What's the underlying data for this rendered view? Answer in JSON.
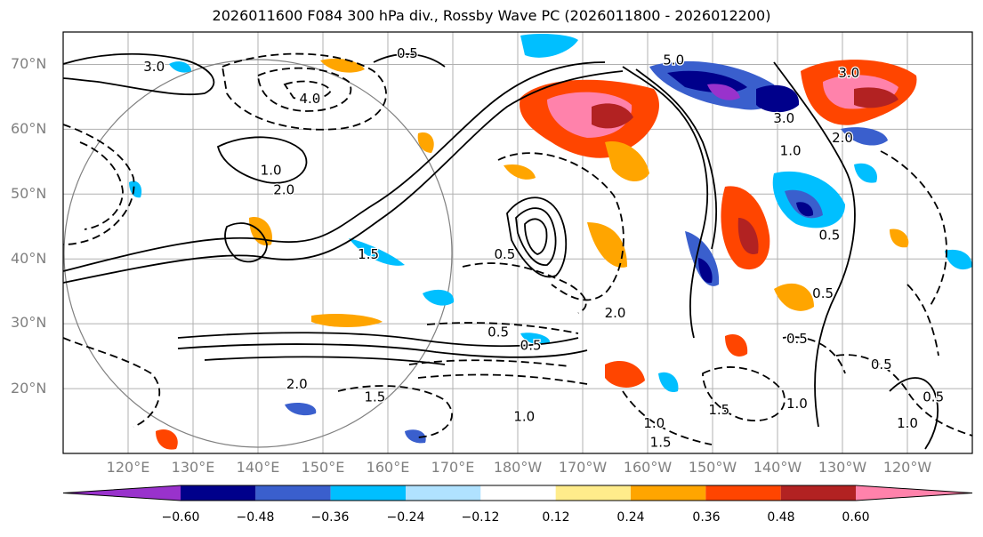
{
  "chart_data": {
    "type": "map-contour",
    "title": "2026011600 F084 300 hPa div., Rossby Wave PC (2026011800 - 2026012200)",
    "lat_ticks": [
      "70°N",
      "60°N",
      "50°N",
      "40°N",
      "30°N",
      "20°N"
    ],
    "lat_values": [
      70,
      60,
      50,
      40,
      30,
      20
    ],
    "lon_ticks": [
      "120°E",
      "130°E",
      "140°E",
      "150°E",
      "160°E",
      "170°E",
      "180°W",
      "170°W",
      "160°W",
      "150°W",
      "140°W",
      "130°W",
      "120°W"
    ],
    "lon_values": [
      120,
      130,
      140,
      150,
      160,
      170,
      180,
      190,
      200,
      210,
      220,
      230,
      240
    ],
    "lon_range": [
      110,
      250
    ],
    "lat_range": [
      10,
      75
    ],
    "colorbar": {
      "ticks": [
        "−0.60",
        "−0.48",
        "−0.36",
        "−0.24",
        "−0.12",
        "0.12",
        "0.24",
        "0.36",
        "0.48",
        "0.60"
      ],
      "levels": [
        -0.6,
        -0.48,
        -0.36,
        -0.24,
        -0.12,
        0.12,
        0.24,
        0.36,
        0.48,
        0.6
      ],
      "colors": [
        "#9932CC",
        "#00008B",
        "#3A5FCD",
        "#00BFFF",
        "#B0E2FF",
        "#FFFFFF",
        "#FFEC8B",
        "#FFA500",
        "#FF4500",
        "#B22222",
        "#FF82AB"
      ],
      "extend": "both"
    },
    "contour_labels": [
      {
        "text": "0.5",
        "lon": 163,
        "lat": 71
      },
      {
        "text": "4.0",
        "lon": 148,
        "lat": 64
      },
      {
        "text": "3.0",
        "lon": 124,
        "lat": 69
      },
      {
        "text": "1.0",
        "lon": 142,
        "lat": 53
      },
      {
        "text": "2.0",
        "lon": 144,
        "lat": 50
      },
      {
        "text": "1.5",
        "lon": 157,
        "lat": 40
      },
      {
        "text": "0.5",
        "lon": 178,
        "lat": 40
      },
      {
        "text": "2.0",
        "lon": 146,
        "lat": 20
      },
      {
        "text": "1.5",
        "lon": 158,
        "lat": 18
      },
      {
        "text": "0.5",
        "lon": 177,
        "lat": 28
      },
      {
        "text": "1.0",
        "lon": 181,
        "lat": 15
      },
      {
        "text": "0.5",
        "lon": 182,
        "lat": 26
      },
      {
        "text": "2.0",
        "lon": 195,
        "lat": 31
      },
      {
        "text": "1.0",
        "lon": 222,
        "lat": 56
      },
      {
        "text": "0.5",
        "lon": 227,
        "lat": 34
      },
      {
        "text": "0.5",
        "lon": 223,
        "lat": 27
      },
      {
        "text": "0.5",
        "lon": 236,
        "lat": 23
      },
      {
        "text": "1.0",
        "lon": 223,
        "lat": 17
      },
      {
        "text": "1.5",
        "lon": 211,
        "lat": 16
      },
      {
        "text": "1.0",
        "lon": 240,
        "lat": 14
      },
      {
        "text": "0.5",
        "lon": 244,
        "lat": 18
      },
      {
        "text": "1.0",
        "lon": 201,
        "lat": 14
      },
      {
        "text": "1.5",
        "lon": 202,
        "lat": 11
      },
      {
        "text": "3.0",
        "lon": 221,
        "lat": 61
      },
      {
        "text": "2.0",
        "lon": 230,
        "lat": 58
      },
      {
        "text": "5.0",
        "lon": 204,
        "lat": 70
      },
      {
        "text": "3.0",
        "lon": 231,
        "lat": 68
      },
      {
        "text": "0.5",
        "lon": 228,
        "lat": 43
      }
    ]
  }
}
